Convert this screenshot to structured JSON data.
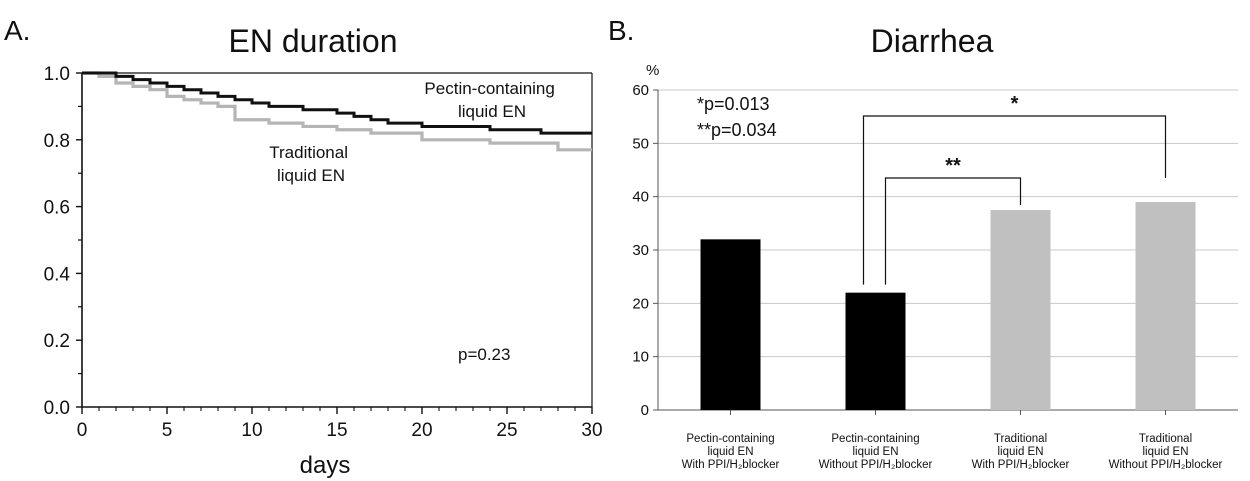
{
  "panelA": {
    "label": "A.",
    "chart_data": {
      "type": "line",
      "title": "EN duration",
      "xlabel": "days",
      "ylabel": "",
      "xlim": [
        0,
        30
      ],
      "ylim": [
        0.0,
        1.0
      ],
      "x_ticks": [
        "0",
        "5",
        "10",
        "15",
        "20",
        "25",
        "30"
      ],
      "y_ticks": [
        "0.0",
        "0.2",
        "0.4",
        "0.6",
        "0.8",
        "1.0"
      ],
      "step": true,
      "series": [
        {
          "name": "Pectin-containing liquid EN",
          "label_lines": [
            "Pectin-containing",
            "liquid EN"
          ],
          "color": "#111111",
          "x": [
            0,
            1,
            2,
            3,
            4,
            5,
            6,
            7,
            8,
            9,
            10,
            11,
            12,
            13,
            14,
            15,
            16,
            17,
            18,
            19,
            20,
            21,
            22,
            23,
            24,
            25,
            26,
            27,
            28,
            29,
            30
          ],
          "y": [
            1.0,
            1.0,
            0.99,
            0.98,
            0.97,
            0.96,
            0.95,
            0.94,
            0.93,
            0.92,
            0.91,
            0.9,
            0.9,
            0.89,
            0.89,
            0.88,
            0.87,
            0.86,
            0.85,
            0.85,
            0.84,
            0.84,
            0.84,
            0.84,
            0.83,
            0.83,
            0.83,
            0.82,
            0.82,
            0.82,
            0.82
          ]
        },
        {
          "name": "Traditional liquid EN",
          "label_lines": [
            "Traditional",
            "liquid EN"
          ],
          "color": "#b5b5b5",
          "x": [
            0,
            1,
            2,
            3,
            4,
            5,
            6,
            7,
            8,
            9,
            10,
            11,
            12,
            13,
            14,
            15,
            16,
            17,
            18,
            19,
            20,
            21,
            22,
            23,
            24,
            25,
            26,
            27,
            28,
            29,
            30
          ],
          "y": [
            1.0,
            0.99,
            0.97,
            0.96,
            0.95,
            0.93,
            0.92,
            0.91,
            0.9,
            0.86,
            0.86,
            0.85,
            0.85,
            0.84,
            0.84,
            0.83,
            0.83,
            0.82,
            0.82,
            0.82,
            0.8,
            0.8,
            0.8,
            0.8,
            0.79,
            0.79,
            0.79,
            0.79,
            0.77,
            0.77,
            0.77
          ]
        }
      ],
      "annotations": [
        "p=0.23"
      ]
    }
  },
  "panelB": {
    "label": "B.",
    "chart_data": {
      "type": "bar",
      "title": "Diarrhea",
      "ylabel": "%",
      "ylim": [
        0,
        60
      ],
      "y_ticks": [
        "0",
        "10",
        "20",
        "30",
        "40",
        "50",
        "60"
      ],
      "grid": true,
      "categories": [
        [
          "Pectin-containing",
          "liquid EN",
          "With PPI/H₂blocker"
        ],
        [
          "Pectin-containing",
          "liquid EN",
          "Without PPI/H₂blocker"
        ],
        [
          "Traditional",
          "liquid EN",
          "With PPI/H₂blocker"
        ],
        [
          "Traditional",
          "liquid EN",
          "Without PPI/H₂blocker"
        ]
      ],
      "values": [
        32,
        22,
        37.5,
        39
      ],
      "colors": [
        "#000000",
        "#000000",
        "#c0c0c0",
        "#c0c0c0"
      ],
      "annotations": [
        "*p=0.013",
        "**p=0.034"
      ],
      "significance": [
        {
          "label": "*",
          "from": 1,
          "to": 3
        },
        {
          "label": "**",
          "from": 1,
          "to": 2
        }
      ]
    }
  }
}
